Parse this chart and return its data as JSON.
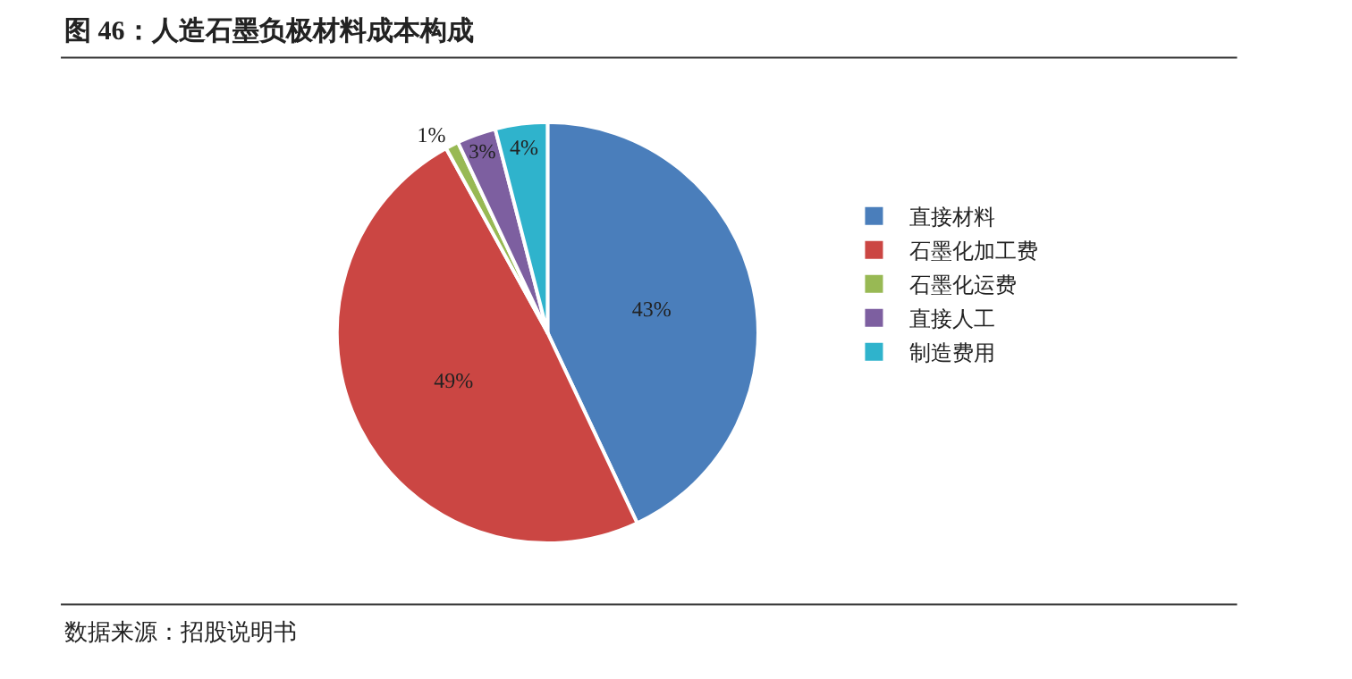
{
  "chart_data": {
    "type": "pie",
    "title": "图 46：人造石墨负极材料成本构成",
    "categories": [
      "直接材料",
      "石墨化加工费",
      "石墨化运费",
      "直接人工",
      "制造费用"
    ],
    "values": [
      43,
      49,
      1,
      3,
      4
    ],
    "value_labels": [
      "43%",
      "49%",
      "1%",
      "3%",
      "4%"
    ],
    "colors": [
      "#4a7ebb",
      "#cb4643",
      "#98b954",
      "#7d5fa0",
      "#2fb3cc"
    ],
    "legend": "right",
    "annotations": [
      "数据来源：招股说明书"
    ]
  }
}
